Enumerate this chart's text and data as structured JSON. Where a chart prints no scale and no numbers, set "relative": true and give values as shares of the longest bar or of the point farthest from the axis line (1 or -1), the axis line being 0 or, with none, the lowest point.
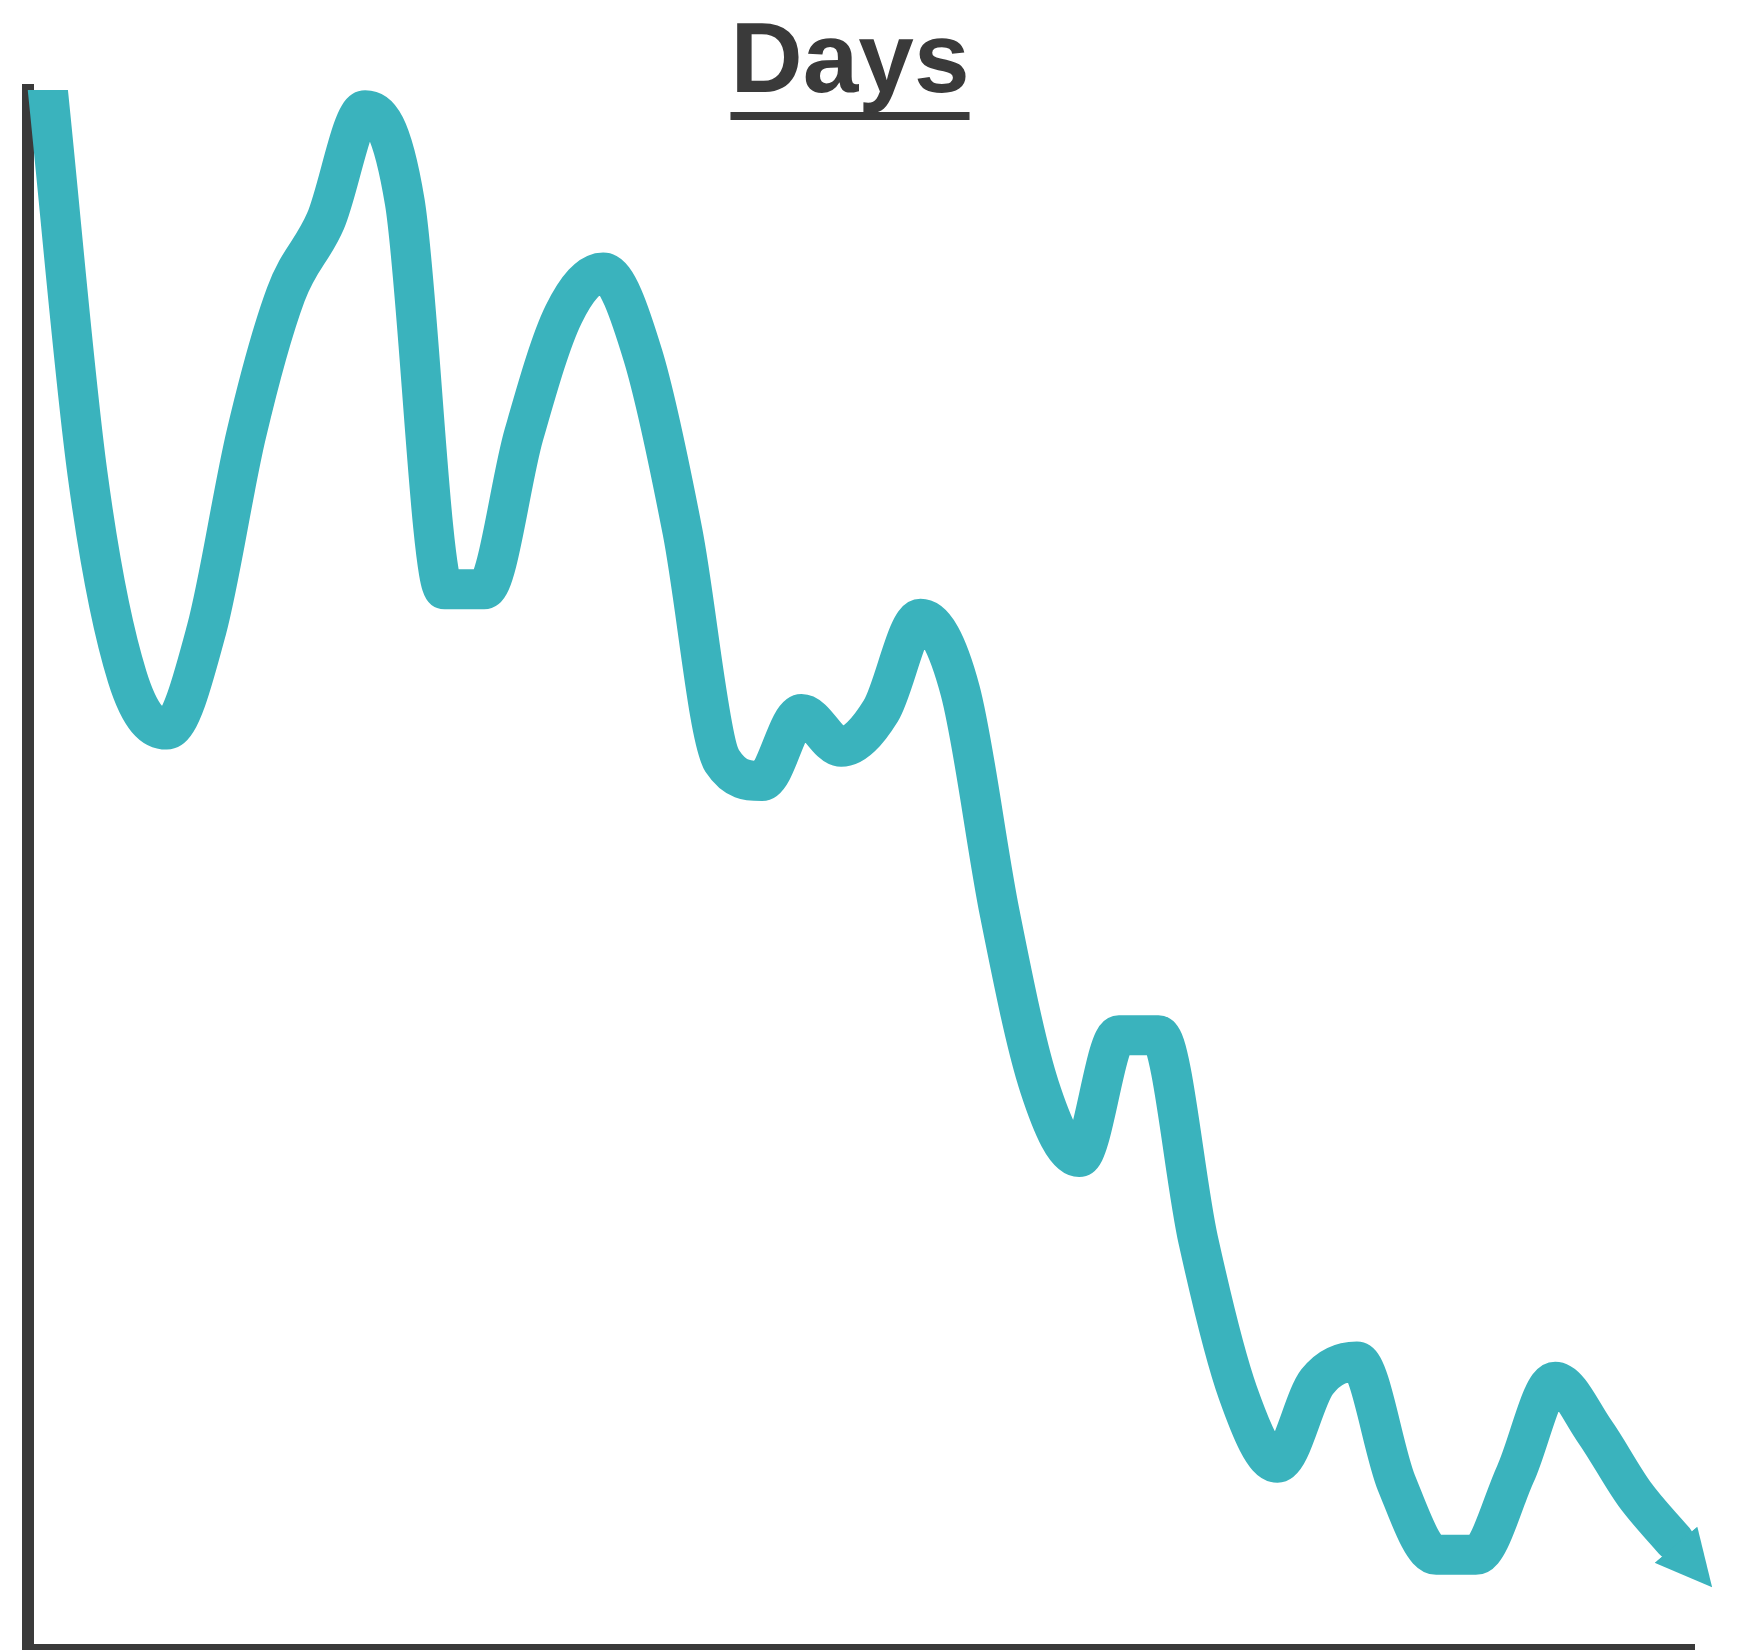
{
  "chart_data": {
    "type": "line",
    "title": "Days",
    "relative": true,
    "grid": false,
    "legend": false,
    "marker": "none",
    "line_style": "solid",
    "categories": [
      null,
      null,
      null,
      null,
      null,
      null,
      null,
      null,
      null,
      null,
      null,
      null,
      null,
      null,
      null,
      null,
      null,
      null,
      null,
      null,
      null,
      null,
      null,
      null,
      null,
      null,
      null,
      null,
      null,
      null,
      null,
      null,
      null,
      null,
      null,
      null,
      null,
      null,
      null,
      null,
      null,
      null
    ],
    "series": [
      {
        "color": "#3ab3bd",
        "values": [
          1.0,
          0.754,
          0.624,
          0.59,
          0.654,
          0.779,
          0.869,
          0.916,
          0.987,
          0.928,
          0.68,
          0.68,
          0.779,
          0.856,
          0.883,
          0.83,
          0.717,
          0.57,
          0.557,
          0.6,
          0.579,
          0.602,
          0.661,
          0.615,
          0.472,
          0.361,
          0.316,
          0.394,
          0.394,
          0.263,
          0.165,
          0.12,
          0.172,
          0.185,
          0.107,
          0.061,
          0.061,
          0.113,
          0.172,
          0.14,
          0.1,
          0.07
        ]
      }
    ]
  }
}
